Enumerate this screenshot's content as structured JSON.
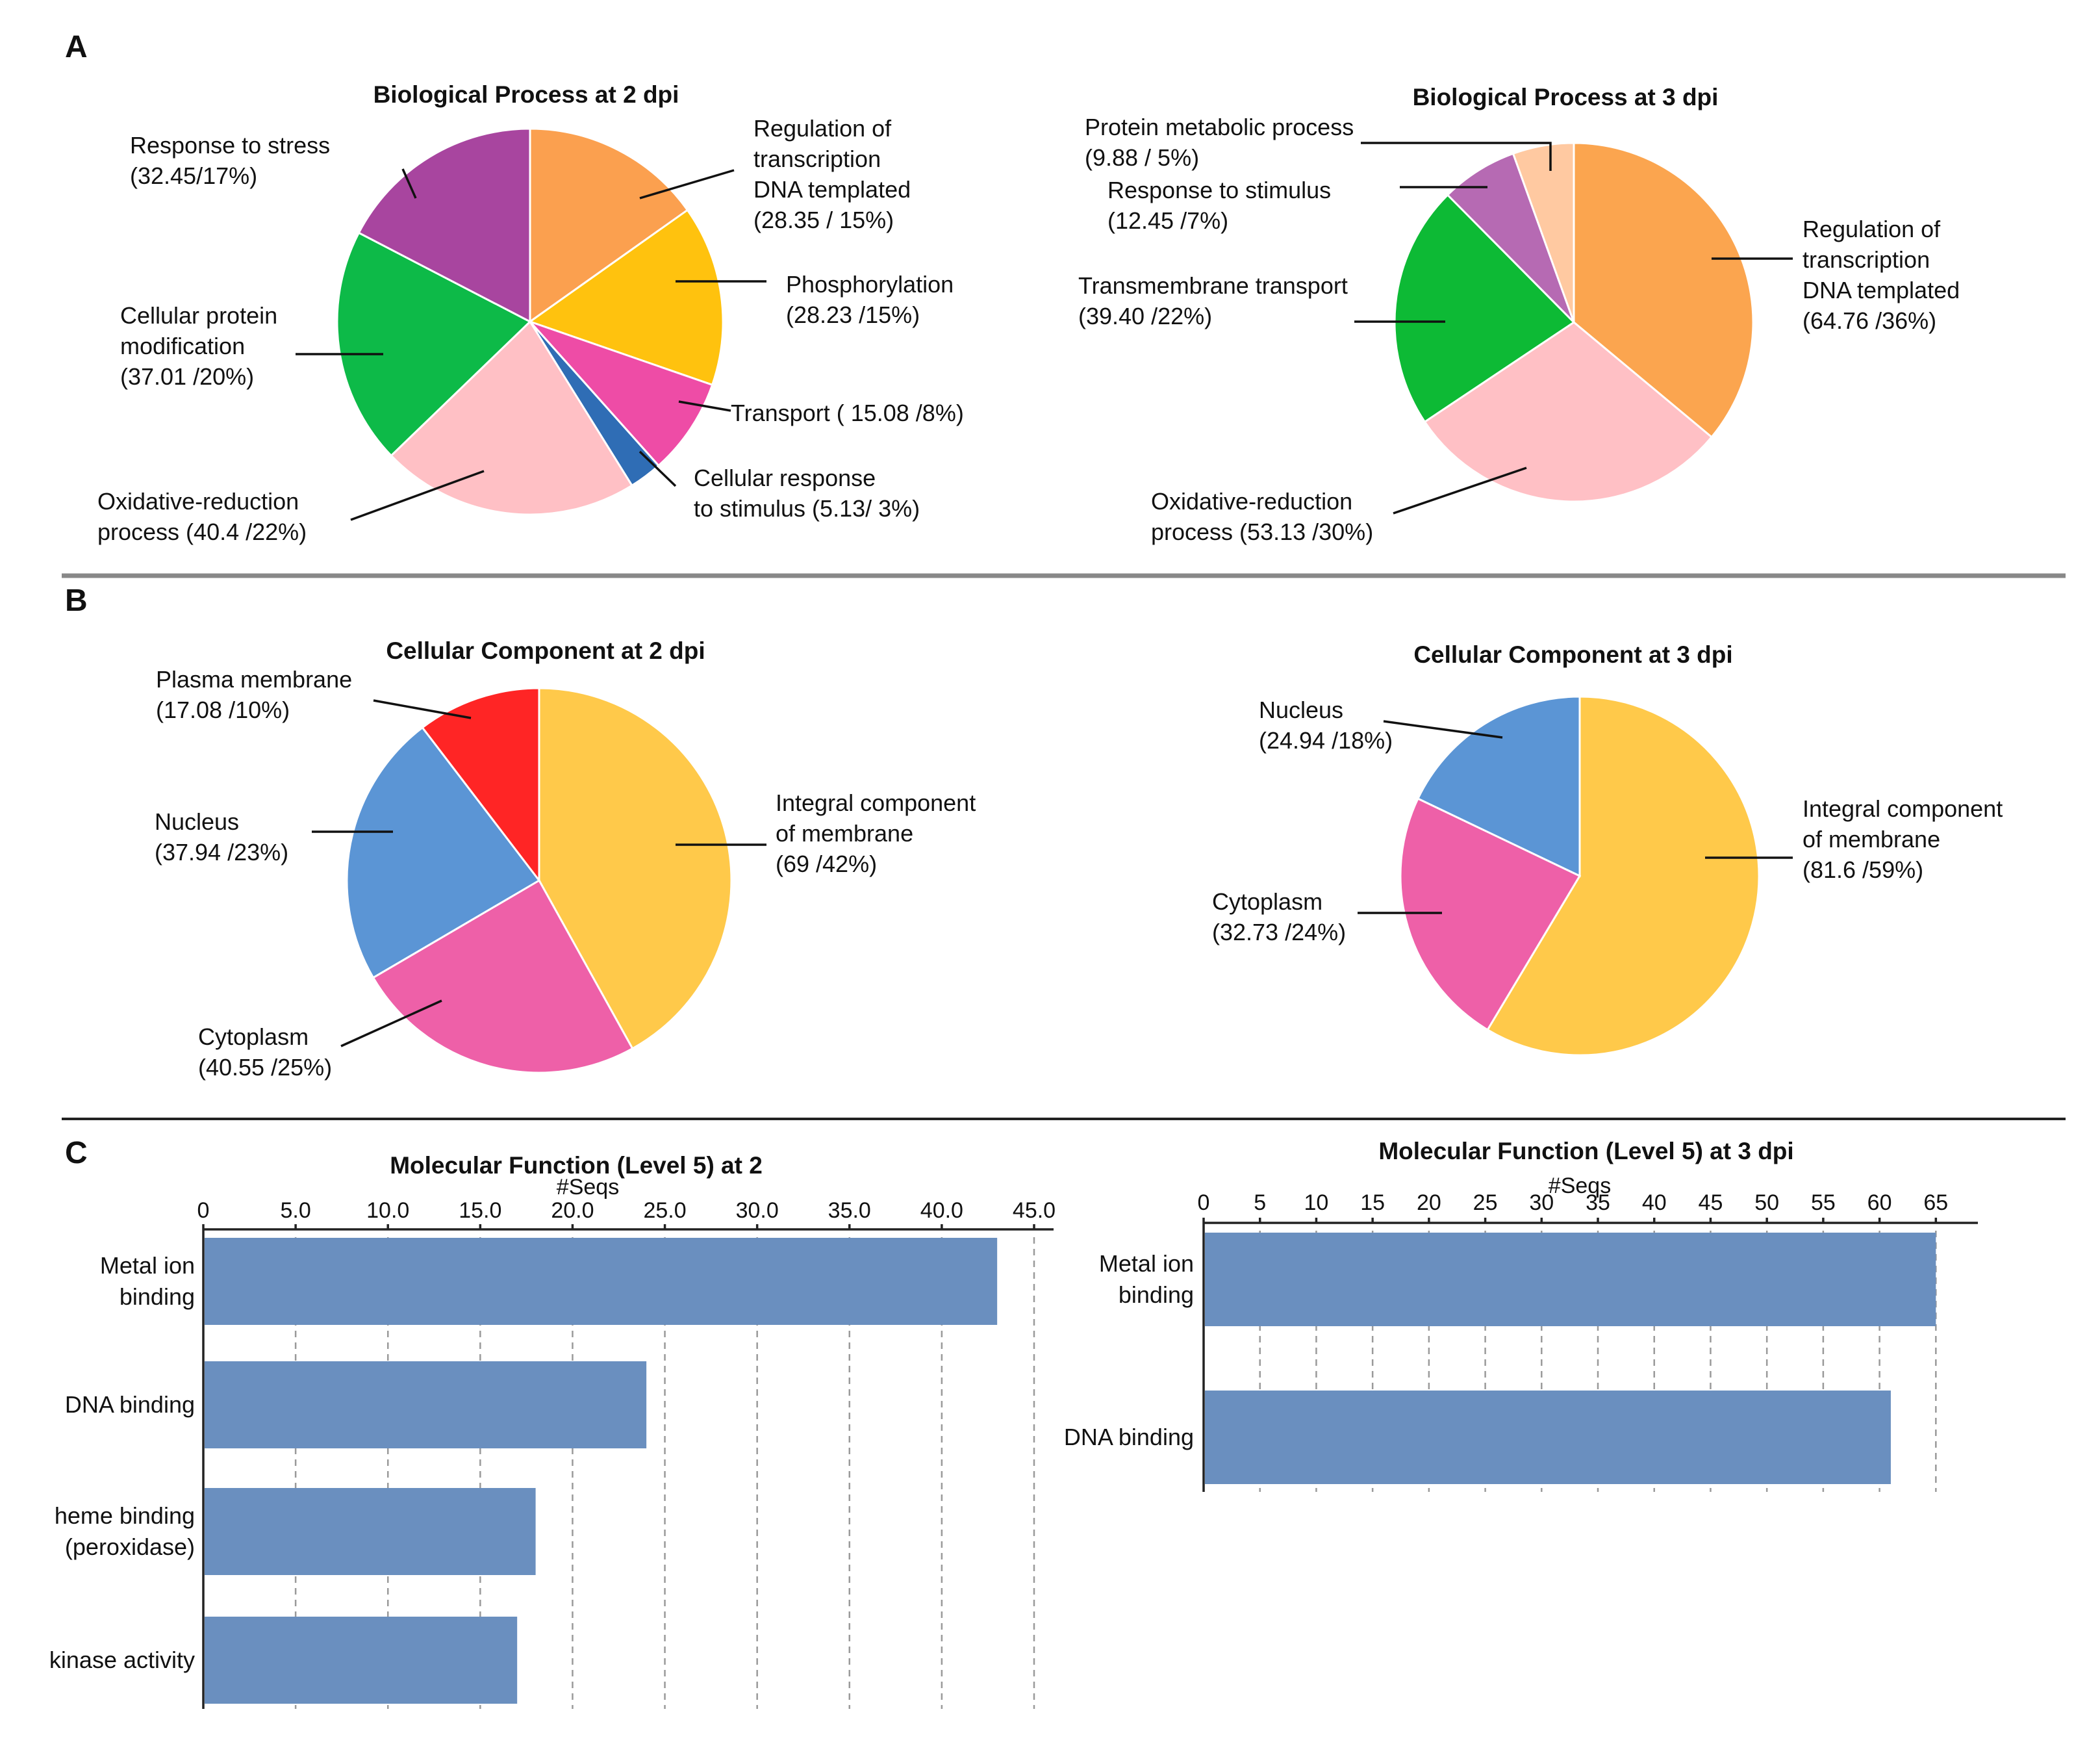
{
  "panels": [
    {
      "letter": "A"
    },
    {
      "letter": "B"
    },
    {
      "letter": "C"
    }
  ],
  "chart_data": [
    {
      "type": "pie",
      "title": "Biological Process at 2 dpi",
      "slices": [
        {
          "label": "Regulation of transcription DNA templated (28.35 / 15%)",
          "lines": [
            "Regulation of",
            "transcription",
            "DNA templated",
            "(28.35 / 15%)"
          ],
          "value": 28.35,
          "percent": 15,
          "color": "#FBA04F"
        },
        {
          "label": "Phosphorylation (28.23 /15%)",
          "lines": [
            "Phosphorylation",
            "(28.23 /15%)"
          ],
          "value": 28.23,
          "percent": 15,
          "color": "#FFC20E"
        },
        {
          "label": "Transport ( 15.08 /8%)",
          "lines": [
            "Transport ( 15.08 /8%)"
          ],
          "value": 15.08,
          "percent": 8,
          "color": "#EE4CA6"
        },
        {
          "label": "Cellular response to stimulus (5.13/ 3%)",
          "lines": [
            "Cellular response",
            "to stimulus (5.13/ 3%)"
          ],
          "value": 5.13,
          "percent": 3,
          "color": "#2F6DB5"
        },
        {
          "label": "Oxidative-reduction process (40.4 /22%)",
          "lines": [
            "Oxidative-reduction",
            "process (40.4 /22%)"
          ],
          "value": 40.4,
          "percent": 22,
          "color": "#FFC0C5"
        },
        {
          "label": "Cellular protein modification (37.01 /20%)",
          "lines": [
            "Cellular protein",
            "modification",
            "(37.01 /20%)"
          ],
          "value": 37.01,
          "percent": 20,
          "color": "#0DBA48"
        },
        {
          "label": "Response to stress (32.45/17%)",
          "lines": [
            "Response to stress",
            "(32.45/17%)"
          ],
          "value": 32.45,
          "percent": 17,
          "color": "#A8459F"
        }
      ]
    },
    {
      "type": "pie",
      "title": "Biological Process at 3 dpi",
      "slices": [
        {
          "label": "Regulation of transcription DNA templated (64.76 /36%)",
          "lines": [
            "Regulation of",
            "transcription",
            "DNA templated",
            "(64.76 /36%)"
          ],
          "value": 64.76,
          "percent": 36,
          "color": "#FBA54F"
        },
        {
          "label": "Oxidative-reduction process (53.13 /30%)",
          "lines": [
            "Oxidative-reduction",
            "process (53.13 /30%)"
          ],
          "value": 53.13,
          "percent": 30,
          "color": "#FFC0C5"
        },
        {
          "label": "Transmembrane transport (39.40 /22%)",
          "lines": [
            "Transmembrane transport",
            "(39.40 /22%)"
          ],
          "value": 39.4,
          "percent": 22,
          "color": "#0DBA35"
        },
        {
          "label": "Response to stimulus (12.45 /7%)",
          "lines": [
            "Response to stimulus",
            "(12.45 /7%)"
          ],
          "value": 12.45,
          "percent": 7,
          "color": "#B66AB3"
        },
        {
          "label": "Protein metabolic process (9.88 / 5%)",
          "lines": [
            "Protein metabolic process",
            "(9.88 / 5%)"
          ],
          "value": 9.88,
          "percent": 5,
          "color": "#FFC9A1"
        }
      ]
    },
    {
      "type": "pie",
      "title": "Cellular Component at 2 dpi",
      "slices": [
        {
          "label": "Integral component of membrane (69 /42%)",
          "lines": [
            "Integral component",
            "of membrane",
            "(69 /42%)"
          ],
          "value": 69,
          "percent": 42,
          "color": "#FFC94A"
        },
        {
          "label": "Cytoplasm (40.55 /25%)",
          "lines": [
            "Cytoplasm",
            "(40.55 /25%)"
          ],
          "value": 40.55,
          "percent": 25,
          "color": "#EE60A8"
        },
        {
          "label": "Nucleus (37.94 /23%)",
          "lines": [
            "Nucleus",
            "(37.94 /23%)"
          ],
          "value": 37.94,
          "percent": 23,
          "color": "#5B95D5"
        },
        {
          "label": "Plasma membrane (17.08 /10%)",
          "lines": [
            "Plasma membrane",
            "(17.08 /10%)"
          ],
          "value": 17.08,
          "percent": 10,
          "color": "#FF2525"
        }
      ]
    },
    {
      "type": "pie",
      "title": "Cellular Component at 3 dpi",
      "slices": [
        {
          "label": "Integral component of membrane (81.6 /59%)",
          "lines": [
            "Integral component",
            "of membrane",
            "(81.6 /59%)"
          ],
          "value": 81.6,
          "percent": 59,
          "color": "#FFC94A"
        },
        {
          "label": "Cytoplasm (32.73 /24%)",
          "lines": [
            "Cytoplasm",
            "(32.73 /24%)"
          ],
          "value": 32.73,
          "percent": 24,
          "color": "#EE60A8"
        },
        {
          "label": "Nucleus (24.94 /18%)",
          "lines": [
            "Nucleus",
            "(24.94 /18%)"
          ],
          "value": 24.94,
          "percent": 18,
          "color": "#5B95D5"
        }
      ]
    },
    {
      "type": "bar",
      "orientation": "horizontal",
      "title": "Molecular Function (Level 5) at 2",
      "xlabel": "#Seqs",
      "xlim": [
        0,
        45
      ],
      "ticks": [
        "0",
        "5.0",
        "10.0",
        "15.0",
        "20.0",
        "25.0",
        "30.0",
        "35.0",
        "40.0",
        "45.0"
      ],
      "grid": true,
      "color": "#6A8FBF",
      "categories": [
        {
          "label": "Metal ion binding",
          "lines": [
            "Metal ion",
            "binding"
          ]
        },
        {
          "label": "DNA binding",
          "lines": [
            "DNA binding"
          ]
        },
        {
          "label": "heme binding (peroxidase)",
          "lines": [
            "heme binding",
            "(peroxidase)"
          ]
        },
        {
          "label": "kinase activity",
          "lines": [
            "kinase activity"
          ]
        }
      ],
      "values": [
        43,
        24,
        18,
        17
      ]
    },
    {
      "type": "bar",
      "orientation": "horizontal",
      "title": "Molecular Function (Level 5) at 3 dpi",
      "xlabel": "#Seqs",
      "xlim": [
        0,
        67
      ],
      "ticks": [
        "0",
        "5",
        "10",
        "15",
        "20",
        "25",
        "30",
        "35",
        "40",
        "45",
        "50",
        "55",
        "60",
        "65"
      ],
      "grid": true,
      "color": "#6A8FBF",
      "categories": [
        {
          "label": "Metal ion binding",
          "lines": [
            "Metal ion",
            "binding"
          ]
        },
        {
          "label": "DNA binding",
          "lines": [
            "DNA binding"
          ]
        }
      ],
      "values": [
        65,
        61
      ]
    }
  ]
}
